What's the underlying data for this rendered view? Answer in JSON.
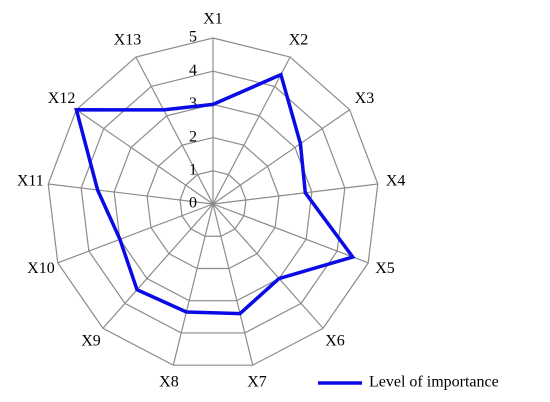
{
  "chart_data": {
    "type": "radar",
    "categories": [
      "X1",
      "X2",
      "X3",
      "X4",
      "X5",
      "X6",
      "X7",
      "X8",
      "X9",
      "X10",
      "X11",
      "X12",
      "X13"
    ],
    "series": [
      {
        "name": "Level of importance",
        "color": "#0a0ae6",
        "values": [
          3,
          4.4,
          3.2,
          2.8,
          4.5,
          3,
          3.4,
          3.35,
          3.45,
          3,
          3.5,
          5,
          3.2
        ]
      }
    ],
    "rlim": [
      0,
      5
    ],
    "rticks": [
      0,
      1,
      2,
      3,
      4,
      5
    ],
    "grid": true,
    "legend": "bottom-right"
  }
}
